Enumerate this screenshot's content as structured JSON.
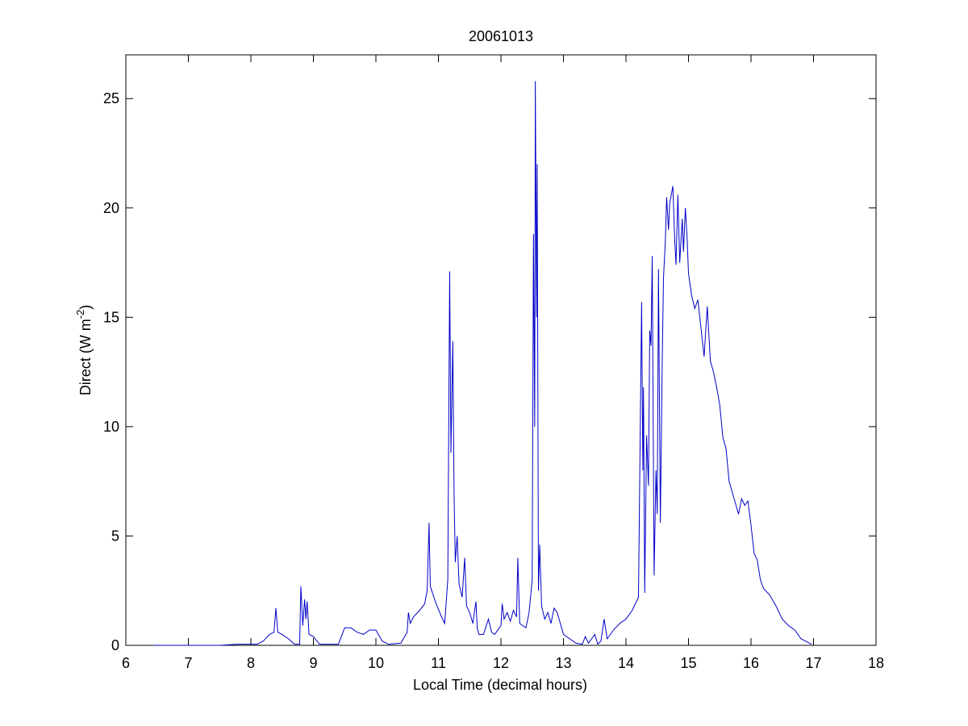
{
  "chart_data": {
    "type": "line",
    "title": "20061013",
    "x_label": "Local Time (decimal hours)",
    "y_label": {
      "text": "Direct (W m",
      "superscript": "-2",
      "suffix": ")"
    },
    "xlim": [
      6,
      18
    ],
    "xticks": [
      6,
      7,
      8,
      9,
      10,
      11,
      12,
      13,
      14,
      15,
      16,
      17,
      18
    ],
    "ylim": [
      0,
      27
    ],
    "yticks": [
      0,
      5,
      10,
      15,
      20,
      25
    ],
    "grid": false,
    "series": [
      {
        "color": "#0000c8",
        "x": [
          6.45,
          7.5,
          7.8,
          8.1,
          8.2,
          8.3,
          8.37,
          8.4,
          8.43,
          8.5,
          8.6,
          8.7,
          8.78,
          8.8,
          8.83,
          8.86,
          8.88,
          8.9,
          8.93,
          9.0,
          9.1,
          9.4,
          9.5,
          9.6,
          9.7,
          9.8,
          9.9,
          10.0,
          10.1,
          10.2,
          10.4,
          10.5,
          10.52,
          10.55,
          10.6,
          10.7,
          10.78,
          10.82,
          10.85,
          10.87,
          10.95,
          11.05,
          11.1,
          11.15,
          11.18,
          11.2,
          11.23,
          11.25,
          11.27,
          11.3,
          11.33,
          11.38,
          11.42,
          11.45,
          11.5,
          11.55,
          11.6,
          11.62,
          11.65,
          11.72,
          11.8,
          11.85,
          11.9,
          12.0,
          12.02,
          12.05,
          12.1,
          12.15,
          12.2,
          12.25,
          12.27,
          12.3,
          12.4,
          12.45,
          12.5,
          12.52,
          12.54,
          12.55,
          12.57,
          12.58,
          12.6,
          12.62,
          12.65,
          12.7,
          12.75,
          12.8,
          12.85,
          12.9,
          12.95,
          13.0,
          13.1,
          13.2,
          13.3,
          13.35,
          13.4,
          13.5,
          13.55,
          13.6,
          13.65,
          13.7,
          13.8,
          13.9,
          14.0,
          14.1,
          14.2,
          14.25,
          14.27,
          14.28,
          14.3,
          14.33,
          14.36,
          14.38,
          14.4,
          14.42,
          14.45,
          14.48,
          14.5,
          14.52,
          14.55,
          14.58,
          14.6,
          14.63,
          14.65,
          14.68,
          14.7,
          14.75,
          14.78,
          14.8,
          14.83,
          14.86,
          14.9,
          14.92,
          14.95,
          14.98,
          15.0,
          15.05,
          15.1,
          15.15,
          15.2,
          15.25,
          15.3,
          15.35,
          15.4,
          15.45,
          15.5,
          15.55,
          15.6,
          15.65,
          15.7,
          15.75,
          15.8,
          15.85,
          15.9,
          15.95,
          16.0,
          16.05,
          16.1,
          16.15,
          16.2,
          16.3,
          16.4,
          16.5,
          16.6,
          16.7,
          16.8,
          16.9,
          16.97
        ],
        "values": [
          0,
          0,
          0.05,
          0.05,
          0.2,
          0.5,
          0.6,
          1.7,
          0.6,
          0.5,
          0.3,
          0.05,
          0.05,
          2.7,
          0.9,
          2.1,
          1.2,
          2.0,
          0.5,
          0.4,
          0.05,
          0.05,
          0.8,
          0.8,
          0.6,
          0.5,
          0.7,
          0.7,
          0.2,
          0.05,
          0.1,
          0.6,
          1.5,
          1.0,
          1.3,
          1.6,
          1.9,
          2.5,
          5.6,
          2.7,
          2.0,
          1.3,
          1.0,
          3.0,
          17.1,
          8.8,
          13.9,
          7.0,
          3.8,
          5.0,
          2.8,
          2.2,
          4.0,
          1.8,
          1.5,
          1.0,
          2.0,
          0.8,
          0.5,
          0.5,
          1.2,
          0.6,
          0.5,
          0.9,
          1.9,
          1.2,
          1.5,
          1.1,
          1.6,
          1.3,
          4.0,
          1.0,
          0.8,
          1.5,
          3.0,
          18.8,
          10,
          25.8,
          15,
          22.0,
          2.5,
          4.6,
          1.8,
          1.2,
          1.5,
          1.0,
          1.7,
          1.5,
          1.0,
          0.5,
          0.3,
          0.1,
          0.05,
          0.4,
          0.1,
          0.5,
          0.05,
          0.2,
          1.2,
          0.3,
          0.7,
          1.0,
          1.2,
          1.6,
          2.2,
          15.7,
          8.0,
          11.8,
          2.4,
          9.6,
          7.3,
          14.4,
          13.7,
          17.8,
          3.2,
          8.0,
          6.0,
          17.2,
          5.6,
          13.0,
          16.8,
          18.5,
          20.5,
          19.0,
          20.2,
          21.0,
          18.5,
          17.4,
          20.6,
          17.5,
          19.5,
          18.0,
          20.0,
          18.5,
          17.0,
          16.0,
          15.4,
          15.8,
          14.5,
          13.2,
          15.5,
          13.0,
          12.5,
          11.8,
          11.0,
          9.5,
          9.0,
          7.5,
          7.0,
          6.5,
          6.0,
          6.7,
          6.4,
          6.6,
          5.5,
          4.2,
          3.9,
          3.0,
          2.6,
          2.3,
          1.8,
          1.2,
          0.9,
          0.7,
          0.3,
          0.15,
          0.05
        ]
      }
    ]
  }
}
